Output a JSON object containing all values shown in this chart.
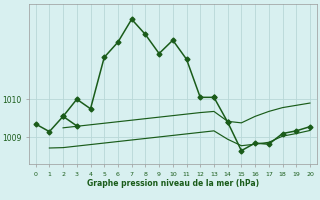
{
  "xlabel": "Graphe pression niveau de la mer (hPa)",
  "ylim": [
    1008.3,
    1012.5
  ],
  "yticks": [
    1009.0,
    1010.0
  ],
  "ytick_labels": [
    "1009",
    "1010"
  ],
  "xlim": [
    -0.5,
    20.5
  ],
  "xticks": [
    0,
    1,
    2,
    3,
    4,
    5,
    6,
    7,
    8,
    9,
    10,
    11,
    12,
    13,
    14,
    15,
    16,
    17,
    18,
    19,
    20
  ],
  "bg_color": "#d8f0f0",
  "grid_color": "#b8d8d8",
  "line_color": "#1a5c1a",
  "text_color": "#1a5c1a",
  "line1_x": [
    0,
    1,
    2,
    3
  ],
  "line1_y": [
    1009.35,
    1009.15,
    1009.55,
    1009.3
  ],
  "line2_x": [
    2,
    3,
    4,
    5,
    6,
    7,
    8,
    9,
    10,
    11,
    12,
    13
  ],
  "line2_y": [
    1009.55,
    1010.0,
    1009.75,
    1011.1,
    1011.5,
    1012.1,
    1011.7,
    1011.2,
    1011.55,
    1011.05,
    1010.05,
    1010.05
  ],
  "line3_x": [
    9,
    10,
    11,
    12,
    13,
    14
  ],
  "line3_y": [
    1011.2,
    1011.55,
    1011.05,
    1010.05,
    1010.05,
    1009.4
  ],
  "line4_x": [
    14,
    15,
    16,
    17,
    18,
    19,
    20
  ],
  "line4_y": [
    1009.4,
    1008.65,
    1008.85,
    1008.82,
    1009.1,
    1009.17,
    1009.28
  ],
  "flat1_x": [
    1,
    2,
    3,
    4,
    5,
    6,
    7,
    8,
    9,
    10,
    11,
    12,
    13,
    14,
    15,
    16,
    17,
    18,
    19,
    20
  ],
  "flat1_y": [
    1008.72,
    1008.73,
    1008.77,
    1008.81,
    1008.85,
    1008.89,
    1008.93,
    1008.97,
    1009.01,
    1009.05,
    1009.09,
    1009.13,
    1009.17,
    1008.95,
    1008.78,
    1008.82,
    1008.87,
    1009.03,
    1009.1,
    1009.18
  ],
  "flat2_x": [
    2,
    3,
    4,
    5,
    6,
    7,
    8,
    9,
    10,
    11,
    12,
    13,
    14,
    15,
    16,
    17,
    18,
    19,
    20
  ],
  "flat2_y": [
    1009.25,
    1009.29,
    1009.33,
    1009.37,
    1009.41,
    1009.45,
    1009.49,
    1009.53,
    1009.57,
    1009.61,
    1009.65,
    1009.68,
    1009.42,
    1009.38,
    1009.55,
    1009.68,
    1009.78,
    1009.84,
    1009.9
  ]
}
